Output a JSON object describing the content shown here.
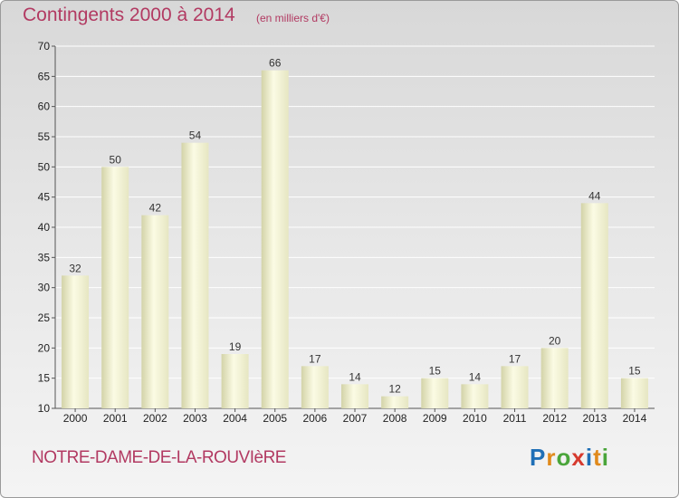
{
  "header": {
    "title": "Contingents 2000 à 2014",
    "subtitle": "(en milliers d'€)"
  },
  "footer": {
    "commune": "NOTRE-DAME-DE-LA-ROUVIèRE",
    "logo_letters": [
      "P",
      "r",
      "o",
      "x",
      "i",
      "t",
      "i"
    ]
  },
  "colors": {
    "title": "#b23a62",
    "bar_light": "#fbfbe4",
    "bar_dark": "#d3d3a8",
    "grid": "#ffffff"
  },
  "chart_data": {
    "type": "bar",
    "title": "Contingents 2000 à 2014",
    "subtitle": "(en milliers d'€)",
    "categories": [
      "2000",
      "2001",
      "2002",
      "2003",
      "2004",
      "2005",
      "2006",
      "2007",
      "2008",
      "2009",
      "2010",
      "2011",
      "2012",
      "2013",
      "2014"
    ],
    "values": [
      32,
      50,
      42,
      54,
      19,
      66,
      17,
      14,
      12,
      15,
      14,
      17,
      20,
      44,
      15
    ],
    "ylim": [
      10,
      70
    ],
    "yticks": [
      10,
      15,
      20,
      25,
      30,
      35,
      40,
      45,
      50,
      55,
      60,
      65,
      70
    ],
    "grid": true,
    "data_labels": true
  }
}
